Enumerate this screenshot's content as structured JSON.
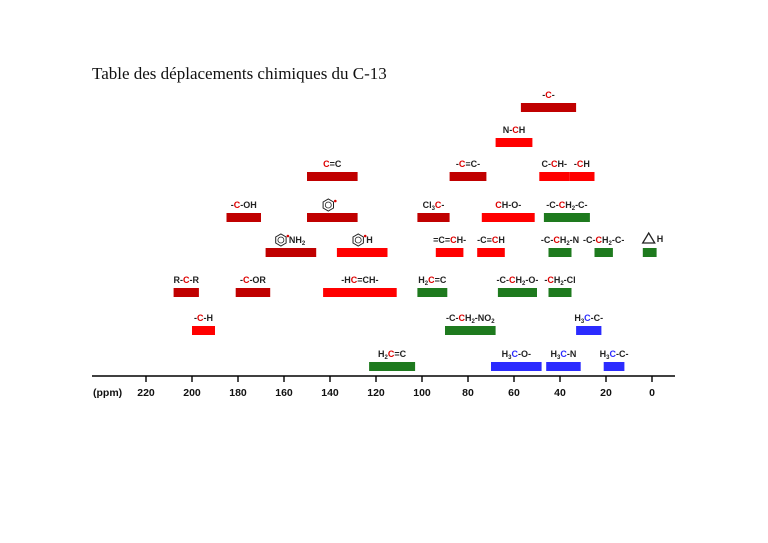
{
  "title": "Table des déplacements chimiques du C-13",
  "axis": {
    "unit_label": "(ppm)",
    "ticks": [
      220,
      200,
      180,
      160,
      140,
      120,
      100,
      80,
      60,
      40,
      20,
      0
    ]
  },
  "colors": {
    "dark_red": "#c00000",
    "red": "#ff0000",
    "green": "#1e7a1e",
    "blue": "#2b2bff",
    "axis": "#000000"
  },
  "ranges": [
    {
      "label": "-C-",
      "from": 57,
      "to": 33,
      "color": "dark_red"
    },
    {
      "label": "N-CH",
      "from": 68,
      "to": 52,
      "color": "red"
    },
    {
      "label": "C=C",
      "from": 150,
      "to": 128,
      "color": "dark_red"
    },
    {
      "label": "-C≡C-",
      "from": 88,
      "to": 72,
      "color": "dark_red"
    },
    {
      "label": "C-CH-",
      "from": 49,
      "to": 36,
      "color": "red"
    },
    {
      "label": "CH",
      "from": 36,
      "to": 25,
      "color": "red"
    },
    {
      "label": "-C-OH",
      "from": 185,
      "to": 170,
      "color": "dark_red"
    },
    {
      "label": "benzene-C",
      "from": 150,
      "to": 128,
      "color": "dark_red"
    },
    {
      "label": "Cl3C-",
      "from": 102,
      "to": 88,
      "color": "dark_red"
    },
    {
      "label": "CH-O-",
      "from": 74,
      "to": 51,
      "color": "red"
    },
    {
      "label": "-C-CH2-C-",
      "from": 47,
      "to": 27,
      "color": "green"
    },
    {
      "label": "aniline-NH2",
      "from": 168,
      "to": 146,
      "color": "dark_red"
    },
    {
      "label": "benzene-H",
      "from": 137,
      "to": 115,
      "color": "red"
    },
    {
      "label": "=C=CH-",
      "from": 94,
      "to": 82,
      "color": "red"
    },
    {
      "label": "-C≡CH",
      "from": 76,
      "to": 64,
      "color": "red"
    },
    {
      "label": "-C-CH2-N",
      "from": 45,
      "to": 35,
      "color": "green"
    },
    {
      "label": "-C-CH2-C-",
      "from": 25,
      "to": 17,
      "color": "green"
    },
    {
      "label": "cyclopropane-H",
      "from": 4,
      "to": -2,
      "color": "green"
    },
    {
      "label": "R-C-R",
      "from": 208,
      "to": 197,
      "color": "dark_red"
    },
    {
      "label": "-C-OR",
      "from": 181,
      "to": 166,
      "color": "dark_red"
    },
    {
      "label": "-HC=CH-",
      "from": 143,
      "to": 111,
      "color": "red"
    },
    {
      "label": "H2C=C N",
      "from": 102,
      "to": 89,
      "color": "green"
    },
    {
      "label": "-C-CH2-O-",
      "from": 67,
      "to": 50,
      "color": "green"
    },
    {
      "label": "-CH2-Cl",
      "from": 45,
      "to": 35,
      "color": "green"
    },
    {
      "label": "-C-H",
      "from": 200,
      "to": 190,
      "color": "red"
    },
    {
      "label": "-C-CH2-NO2",
      "from": 90,
      "to": 68,
      "color": "green"
    },
    {
      "label": "H3C-C-",
      "from": 33,
      "to": 22,
      "color": "blue"
    },
    {
      "label": "H2C=C",
      "from": 123,
      "to": 103,
      "color": "green"
    },
    {
      "label": "H3C-O-",
      "from": 70,
      "to": 48,
      "color": "blue"
    },
    {
      "label": "H3C-N",
      "from": 46,
      "to": 31,
      "color": "blue"
    },
    {
      "label": "H3C-C-",
      "from": 21,
      "to": 12,
      "color": "blue"
    }
  ]
}
